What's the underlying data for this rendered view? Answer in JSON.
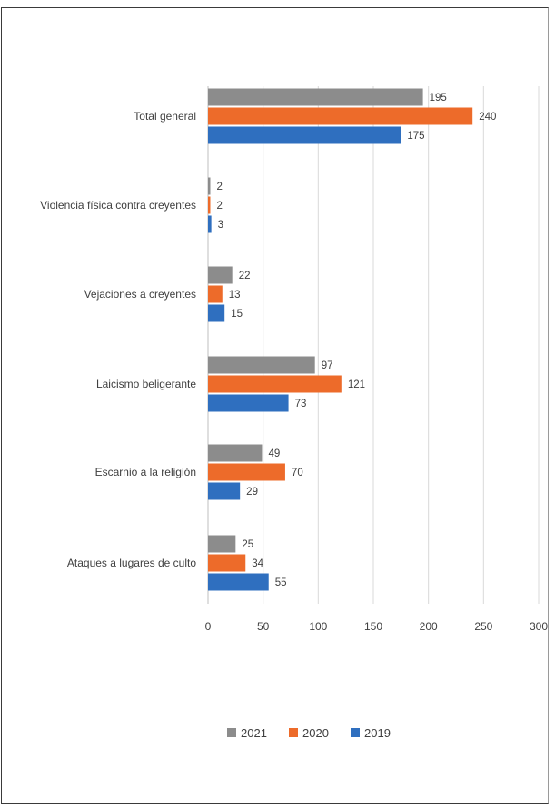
{
  "chart_data": {
    "type": "bar",
    "orientation": "horizontal",
    "categories": [
      "Total general",
      "Violencia física contra creyentes",
      "Vejaciones a creyentes",
      "Laicismo beligerante",
      "Escarnio a la religión",
      "Ataques a lugares de culto"
    ],
    "series": [
      {
        "name": "2021",
        "color": "#8c8c8c",
        "values": [
          195,
          2,
          22,
          97,
          49,
          25
        ]
      },
      {
        "name": "2020",
        "color": "#ed6b2a",
        "values": [
          240,
          2,
          13,
          121,
          70,
          34
        ]
      },
      {
        "name": "2019",
        "color": "#2f6fbf",
        "values": [
          175,
          3,
          15,
          73,
          29,
          55
        ]
      }
    ],
    "xlim": [
      0,
      300
    ],
    "xticks": [
      "0",
      "50",
      "100",
      "150",
      "200",
      "250",
      "300"
    ],
    "grid": "vertical",
    "legend": "bottom"
  }
}
